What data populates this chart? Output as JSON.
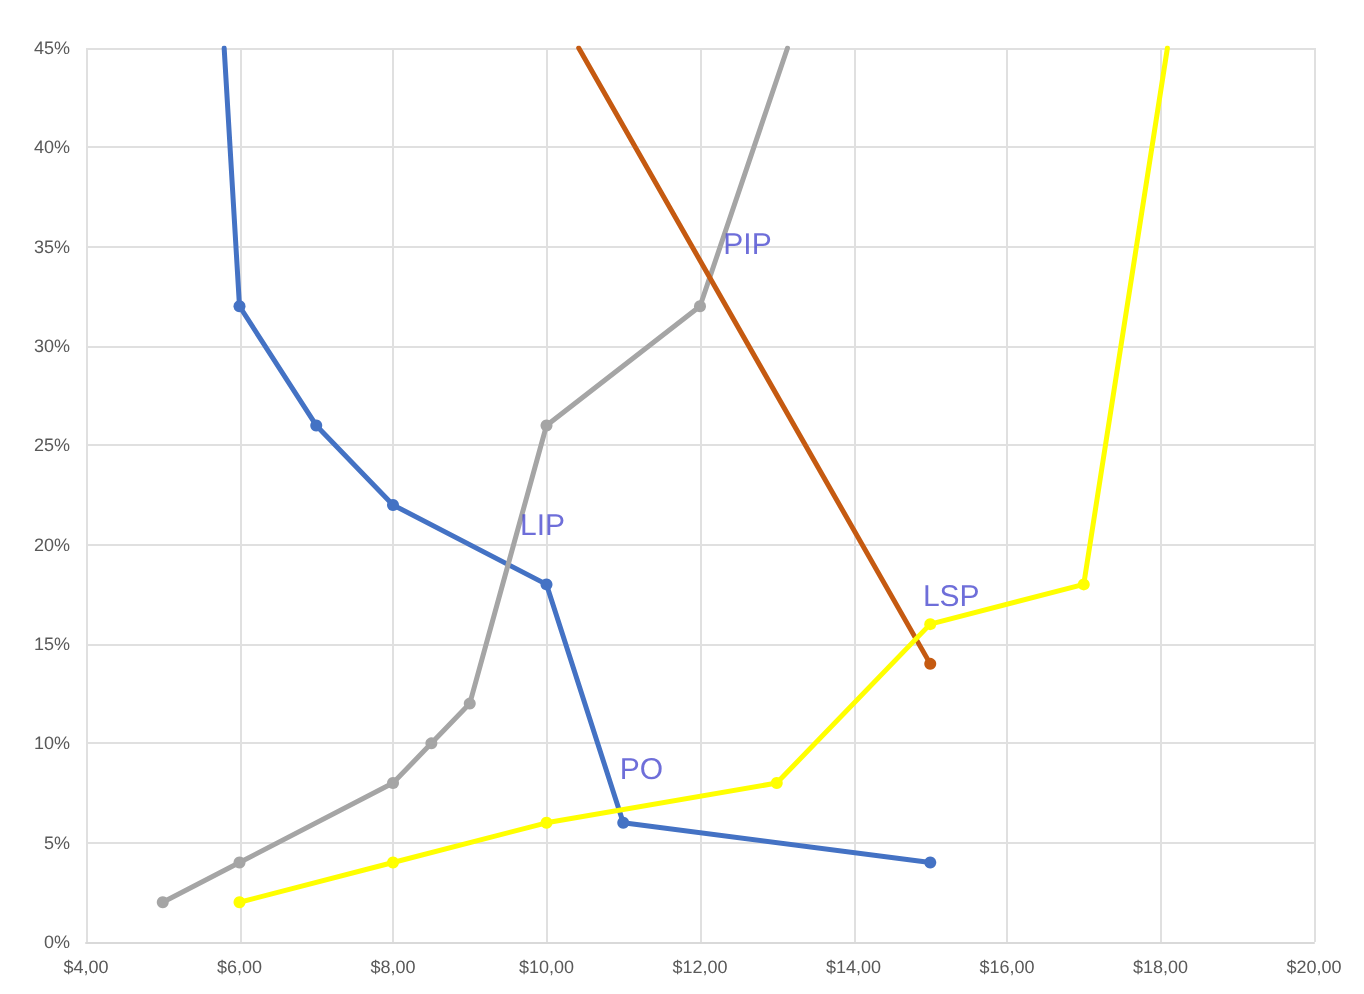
{
  "chart_data": {
    "type": "line",
    "xlim": [
      4,
      20
    ],
    "ylim": [
      0,
      45
    ],
    "xticks": [
      {
        "value": 4,
        "label": "$4,00"
      },
      {
        "value": 6,
        "label": "$6,00"
      },
      {
        "value": 8,
        "label": "$8,00"
      },
      {
        "value": 10,
        "label": "$10,00"
      },
      {
        "value": 12,
        "label": "$12,00"
      },
      {
        "value": 14,
        "label": "$14,00"
      },
      {
        "value": 16,
        "label": "$16,00"
      },
      {
        "value": 18,
        "label": "$18,00"
      },
      {
        "value": 20,
        "label": "$20,00"
      }
    ],
    "yticks": [
      {
        "value": 0,
        "label": "0%"
      },
      {
        "value": 5,
        "label": "5%"
      },
      {
        "value": 10,
        "label": "10%"
      },
      {
        "value": 15,
        "label": "15%"
      },
      {
        "value": 20,
        "label": "20%"
      },
      {
        "value": 25,
        "label": "25%"
      },
      {
        "value": 30,
        "label": "30%"
      },
      {
        "value": 35,
        "label": "35%"
      },
      {
        "value": 40,
        "label": "40%"
      },
      {
        "value": 45,
        "label": "45%"
      }
    ],
    "series": [
      {
        "color": "#4472c4",
        "x": [
          5.8,
          6,
          7,
          8,
          10,
          11,
          15
        ],
        "values": [
          45,
          32,
          26,
          22,
          18,
          6,
          4
        ]
      },
      {
        "color": "#a5a5a5",
        "x": [
          5,
          6,
          8,
          8.5,
          9,
          10,
          12,
          13.14
        ],
        "values": [
          2,
          4,
          8,
          10,
          12,
          26,
          32,
          45
        ]
      },
      {
        "color": "#c55a11",
        "x": [
          10.42,
          15
        ],
        "values": [
          45,
          14
        ]
      },
      {
        "color": "#ffff00",
        "x": [
          6,
          8,
          10,
          13,
          15,
          17,
          18.09
        ],
        "values": [
          2,
          4,
          6,
          8,
          16,
          18,
          45
        ]
      }
    ],
    "annotations": [
      {
        "text": "LIP",
        "x": 9.55,
        "y": 18.9
      },
      {
        "text": "PO",
        "x": 10.85,
        "y": 6.6
      },
      {
        "text": "PIP",
        "x": 12.2,
        "y": 33
      },
      {
        "text": "LSP",
        "x": 14.8,
        "y": 15.3
      }
    ],
    "grid": true,
    "marker": "circle",
    "line_style": "solid"
  }
}
